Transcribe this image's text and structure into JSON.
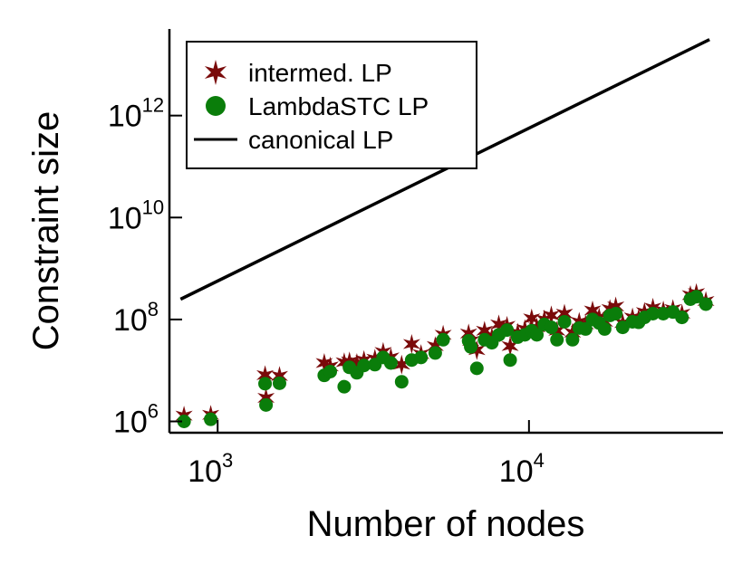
{
  "chart_data": {
    "type": "scatter",
    "title": "",
    "xlabel": "Number of nodes",
    "ylabel": "Constraint size",
    "x_scale": "log",
    "y_scale": "log",
    "xlim": [
      700,
      42000
    ],
    "ylim": [
      600000,
      50000000000000
    ],
    "grid": false,
    "legend_position": "top-left",
    "x_ticks": [
      {
        "base": "10",
        "exp": "3",
        "value": 1000
      },
      {
        "base": "10",
        "exp": "4",
        "value": 10000
      }
    ],
    "y_ticks": [
      {
        "base": "10",
        "exp": "6",
        "value": 1000000
      },
      {
        "base": "10",
        "exp": "8",
        "value": 100000000
      },
      {
        "base": "10",
        "exp": "10",
        "value": 10000000000
      },
      {
        "base": "10",
        "exp": "12",
        "value": 1000000000000
      }
    ],
    "series": [
      {
        "name": "intermed. LP",
        "marker": "star",
        "color": "#7a0a0a",
        "points": [
          [
            780,
            1300000.0
          ],
          [
            950,
            1350000.0
          ],
          [
            1420,
            8100000.0
          ],
          [
            1430,
            2900000.0
          ],
          [
            1580,
            7800000.0
          ],
          [
            2200,
            14000000.0
          ],
          [
            2300,
            12000000.0
          ],
          [
            2550,
            14500000.0
          ],
          [
            2650,
            15000000.0
          ],
          [
            2800,
            14000000.0
          ],
          [
            2950,
            16000000.0
          ],
          [
            3200,
            17000000.0
          ],
          [
            3400,
            23000000.0
          ],
          [
            3600,
            18000000.0
          ],
          [
            3900,
            13000000.0
          ],
          [
            4200,
            33000000.0
          ],
          [
            4500,
            21000000.0
          ],
          [
            5000,
            30000000.0
          ],
          [
            5300,
            50000000.0
          ],
          [
            6400,
            53000000.0
          ],
          [
            6500,
            38000000.0
          ],
          [
            6800,
            25000000.0
          ],
          [
            7200,
            60000000.0
          ],
          [
            7600,
            45000000.0
          ],
          [
            8000,
            80000000.0
          ],
          [
            8500,
            75000000.0
          ],
          [
            8700,
            30000000.0
          ],
          [
            9200,
            55000000.0
          ],
          [
            9700,
            65000000.0
          ],
          [
            10200,
            105000000.0
          ],
          [
            10600,
            70000000.0
          ],
          [
            11200,
            100000000.0
          ],
          [
            11800,
            120000000.0
          ],
          [
            12300,
            60000000.0
          ],
          [
            13000,
            130000000.0
          ],
          [
            13800,
            55000000.0
          ],
          [
            14500,
            90000000.0
          ],
          [
            15200,
            80000000.0
          ],
          [
            16000,
            150000000.0
          ],
          [
            16800,
            110000000.0
          ],
          [
            17500,
            90000000.0
          ],
          [
            18200,
            160000000.0
          ],
          [
            19000,
            180000000.0
          ],
          [
            20000,
            85000000.0
          ],
          [
            21500,
            110000000.0
          ],
          [
            22500,
            105000000.0
          ],
          [
            23500,
            140000000.0
          ],
          [
            25000,
            170000000.0
          ],
          [
            27000,
            150000000.0
          ],
          [
            29000,
            160000000.0
          ],
          [
            31000,
            130000000.0
          ],
          [
            33000,
            300000000.0
          ],
          [
            34500,
            330000000.0
          ],
          [
            37000,
            230000000.0
          ]
        ]
      },
      {
        "name": "LambdaSTC LP",
        "marker": "circle",
        "color": "#0a7d0a",
        "points": [
          [
            780,
            1000000.0
          ],
          [
            950,
            1100000.0
          ],
          [
            1420,
            5500000.0
          ],
          [
            1430,
            2100000.0
          ],
          [
            1580,
            5600000.0
          ],
          [
            2200,
            8000000.0
          ],
          [
            2300,
            9500000.0
          ],
          [
            2550,
            4800000.0
          ],
          [
            2650,
            11500000.0
          ],
          [
            2800,
            9000000.0
          ],
          [
            2950,
            12500000.0
          ],
          [
            3200,
            13000000.0
          ],
          [
            3400,
            18000000.0
          ],
          [
            3600,
            14000000.0
          ],
          [
            3900,
            6000000.0
          ],
          [
            4200,
            16000000.0
          ],
          [
            4500,
            18000000.0
          ],
          [
            5000,
            22000000.0
          ],
          [
            5300,
            40000000.0
          ],
          [
            6400,
            38000000.0
          ],
          [
            6500,
            29000000.0
          ],
          [
            6800,
            11000000.0
          ],
          [
            7200,
            40000000.0
          ],
          [
            7600,
            35000000.0
          ],
          [
            8000,
            50000000.0
          ],
          [
            8500,
            62000000.0
          ],
          [
            8700,
            16000000.0
          ],
          [
            9200,
            45000000.0
          ],
          [
            9700,
            50000000.0
          ],
          [
            10200,
            60000000.0
          ],
          [
            10600,
            50000000.0
          ],
          [
            11200,
            80000000.0
          ],
          [
            11800,
            70000000.0
          ],
          [
            12300,
            40000000.0
          ],
          [
            13000,
            90000000.0
          ],
          [
            13800,
            40000000.0
          ],
          [
            14500,
            68000000.0
          ],
          [
            15200,
            65000000.0
          ],
          [
            16000,
            100000000.0
          ],
          [
            16800,
            85000000.0
          ],
          [
            17500,
            65000000.0
          ],
          [
            18200,
            120000000.0
          ],
          [
            19000,
            130000000.0
          ],
          [
            20000,
            70000000.0
          ],
          [
            21500,
            90000000.0
          ],
          [
            22500,
            88000000.0
          ],
          [
            23500,
            110000000.0
          ],
          [
            25000,
            130000000.0
          ],
          [
            27000,
            130000000.0
          ],
          [
            29000,
            140000000.0
          ],
          [
            31000,
            110000000.0
          ],
          [
            33000,
            250000000.0
          ],
          [
            34500,
            280000000.0
          ],
          [
            37000,
            200000000.0
          ]
        ]
      },
      {
        "name": "canonical LP",
        "marker": "line",
        "color": "#000000",
        "points": [
          [
            760,
            250000000.0
          ],
          [
            38000,
            31000000000000.0
          ]
        ]
      }
    ]
  }
}
